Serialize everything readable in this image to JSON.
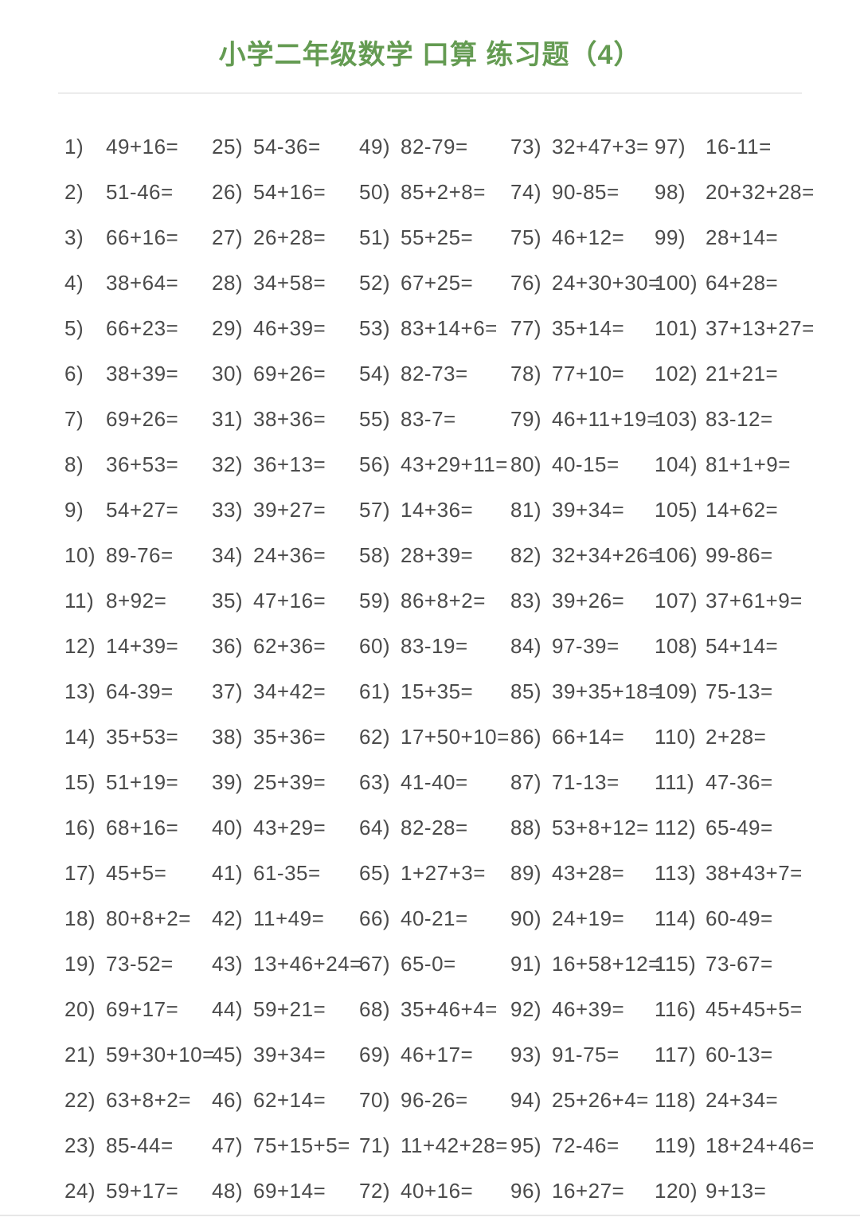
{
  "page": {
    "title": "小学二年级数学 口算 练习题（4）"
  },
  "colors": {
    "title_green": "#649b52",
    "text": "#4b4b4b",
    "divider": "#ececec",
    "background": "#ffffff"
  },
  "grid": {
    "columns": [
      {
        "items": [
          {
            "label": "1)",
            "expr": "49+16="
          },
          {
            "label": "2)",
            "expr": "51-46="
          },
          {
            "label": "3)",
            "expr": "66+16="
          },
          {
            "label": "4)",
            "expr": "38+64="
          },
          {
            "label": "5)",
            "expr": "66+23="
          },
          {
            "label": "6)",
            "expr": "38+39="
          },
          {
            "label": "7)",
            "expr": "69+26="
          },
          {
            "label": "8)",
            "expr": "36+53="
          },
          {
            "label": "9)",
            "expr": "54+27="
          },
          {
            "label": "10)",
            "expr": "89-76="
          },
          {
            "label": "11)",
            "expr": "8+92="
          },
          {
            "label": "12)",
            "expr": "14+39="
          },
          {
            "label": "13)",
            "expr": "64-39="
          },
          {
            "label": "14)",
            "expr": "35+53="
          },
          {
            "label": "15)",
            "expr": "51+19="
          },
          {
            "label": "16)",
            "expr": "68+16="
          },
          {
            "label": "17)",
            "expr": "45+5="
          },
          {
            "label": "18)",
            "expr": "80+8+2="
          },
          {
            "label": "19)",
            "expr": "73-52="
          },
          {
            "label": "20)",
            "expr": "69+17="
          },
          {
            "label": "21)",
            "expr": "59+30+10="
          },
          {
            "label": "22)",
            "expr": "63+8+2="
          },
          {
            "label": "23)",
            "expr": "85-44="
          },
          {
            "label": "24)",
            "expr": "59+17="
          }
        ]
      },
      {
        "items": [
          {
            "label": "25)",
            "expr": "54-36="
          },
          {
            "label": "26)",
            "expr": "54+16="
          },
          {
            "label": "27)",
            "expr": "26+28="
          },
          {
            "label": "28)",
            "expr": "34+58="
          },
          {
            "label": "29)",
            "expr": "46+39="
          },
          {
            "label": "30)",
            "expr": "69+26="
          },
          {
            "label": "31)",
            "expr": "38+36="
          },
          {
            "label": "32)",
            "expr": "36+13="
          },
          {
            "label": "33)",
            "expr": "39+27="
          },
          {
            "label": "34)",
            "expr": "24+36="
          },
          {
            "label": "35)",
            "expr": "47+16="
          },
          {
            "label": "36)",
            "expr": "62+36="
          },
          {
            "label": "37)",
            "expr": "34+42="
          },
          {
            "label": "38)",
            "expr": "35+36="
          },
          {
            "label": "39)",
            "expr": "25+39="
          },
          {
            "label": "40)",
            "expr": "43+29="
          },
          {
            "label": "41)",
            "expr": "61-35="
          },
          {
            "label": "42)",
            "expr": "11+49="
          },
          {
            "label": "43)",
            "expr": "13+46+24="
          },
          {
            "label": "44)",
            "expr": "59+21="
          },
          {
            "label": "45)",
            "expr": "39+34="
          },
          {
            "label": "46)",
            "expr": "62+14="
          },
          {
            "label": "47)",
            "expr": "75+15+5="
          },
          {
            "label": "48)",
            "expr": "69+14="
          }
        ]
      },
      {
        "items": [
          {
            "label": "49)",
            "expr": "82-79="
          },
          {
            "label": "50)",
            "expr": "85+2+8="
          },
          {
            "label": "51)",
            "expr": "55+25="
          },
          {
            "label": "52)",
            "expr": "67+25="
          },
          {
            "label": "53)",
            "expr": "83+14+6="
          },
          {
            "label": "54)",
            "expr": "82-73="
          },
          {
            "label": "55)",
            "expr": "83-7="
          },
          {
            "label": "56)",
            "expr": "43+29+11="
          },
          {
            "label": "57)",
            "expr": "14+36="
          },
          {
            "label": "58)",
            "expr": "28+39="
          },
          {
            "label": "59)",
            "expr": "86+8+2="
          },
          {
            "label": "60)",
            "expr": "83-19="
          },
          {
            "label": "61)",
            "expr": "15+35="
          },
          {
            "label": "62)",
            "expr": "17+50+10="
          },
          {
            "label": "63)",
            "expr": "41-40="
          },
          {
            "label": "64)",
            "expr": "82-28="
          },
          {
            "label": "65)",
            "expr": "1+27+3="
          },
          {
            "label": "66)",
            "expr": "40-21="
          },
          {
            "label": "67)",
            "expr": "65-0="
          },
          {
            "label": "68)",
            "expr": "35+46+4="
          },
          {
            "label": "69)",
            "expr": "46+17="
          },
          {
            "label": "70)",
            "expr": "96-26="
          },
          {
            "label": "71)",
            "expr": "11+42+28="
          },
          {
            "label": "72)",
            "expr": "40+16="
          }
        ]
      },
      {
        "items": [
          {
            "label": "73)",
            "expr": "32+47+3="
          },
          {
            "label": "74)",
            "expr": "90-85="
          },
          {
            "label": "75)",
            "expr": "46+12="
          },
          {
            "label": "76)",
            "expr": "24+30+30="
          },
          {
            "label": "77)",
            "expr": "35+14="
          },
          {
            "label": "78)",
            "expr": "77+10="
          },
          {
            "label": "79)",
            "expr": "46+11+19="
          },
          {
            "label": "80)",
            "expr": "40-15="
          },
          {
            "label": "81)",
            "expr": "39+34="
          },
          {
            "label": "82)",
            "expr": "32+34+26="
          },
          {
            "label": "83)",
            "expr": "39+26="
          },
          {
            "label": "84)",
            "expr": "97-39="
          },
          {
            "label": "85)",
            "expr": "39+35+18="
          },
          {
            "label": "86)",
            "expr": "66+14="
          },
          {
            "label": "87)",
            "expr": "71-13="
          },
          {
            "label": "88)",
            "expr": "53+8+12="
          },
          {
            "label": "89)",
            "expr": "43+28="
          },
          {
            "label": "90)",
            "expr": "24+19="
          },
          {
            "label": "91)",
            "expr": "16+58+12="
          },
          {
            "label": "92)",
            "expr": "46+39="
          },
          {
            "label": "93)",
            "expr": "91-75="
          },
          {
            "label": "94)",
            "expr": "25+26+4="
          },
          {
            "label": "95)",
            "expr": "72-46="
          },
          {
            "label": "96)",
            "expr": "16+27="
          }
        ]
      },
      {
        "items": [
          {
            "label": "97)",
            "expr": "16-11="
          },
          {
            "label": "98)",
            "expr": "20+32+28="
          },
          {
            "label": "99)",
            "expr": "28+14="
          },
          {
            "label": "100)",
            "expr": "64+28="
          },
          {
            "label": "101)",
            "expr": "37+13+27="
          },
          {
            "label": "102)",
            "expr": "21+21="
          },
          {
            "label": "103)",
            "expr": "83-12="
          },
          {
            "label": "104)",
            "expr": "81+1+9="
          },
          {
            "label": "105)",
            "expr": "14+62="
          },
          {
            "label": "106)",
            "expr": "99-86="
          },
          {
            "label": "107)",
            "expr": "37+61+9="
          },
          {
            "label": "108)",
            "expr": "54+14="
          },
          {
            "label": "109)",
            "expr": "75-13="
          },
          {
            "label": "110)",
            "expr": "2+28="
          },
          {
            "label": "111)",
            "expr": "47-36="
          },
          {
            "label": "112)",
            "expr": "65-49="
          },
          {
            "label": "113)",
            "expr": "38+43+7="
          },
          {
            "label": "114)",
            "expr": "60-49="
          },
          {
            "label": "115)",
            "expr": "73-67="
          },
          {
            "label": "116)",
            "expr": "45+45+5="
          },
          {
            "label": "117)",
            "expr": "60-13="
          },
          {
            "label": "118)",
            "expr": "24+34="
          },
          {
            "label": "119)",
            "expr": "18+24+46="
          },
          {
            "label": "120)",
            "expr": "9+13="
          }
        ]
      }
    ]
  }
}
